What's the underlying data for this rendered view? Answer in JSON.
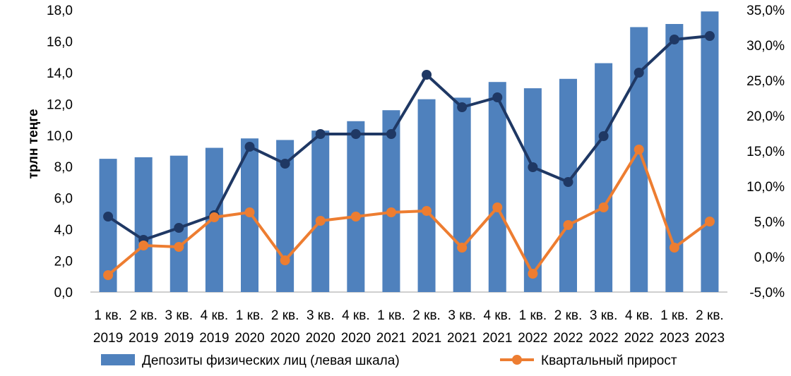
{
  "chart_data": {
    "type": "bar",
    "ylabel": "трлн теңге",
    "categories": [
      {
        "q": "1 кв.",
        "y": "2019"
      },
      {
        "q": "2 кв.",
        "y": "2019"
      },
      {
        "q": "3 кв.",
        "y": "2019"
      },
      {
        "q": "4 кв.",
        "y": "2019"
      },
      {
        "q": "1 кв.",
        "y": "2020"
      },
      {
        "q": "2 кв.",
        "y": "2020"
      },
      {
        "q": "3 кв.",
        "y": "2020"
      },
      {
        "q": "4 кв.",
        "y": "2020"
      },
      {
        "q": "1 кв.",
        "y": "2021"
      },
      {
        "q": "2 кв.",
        "y": "2021"
      },
      {
        "q": "3 кв.",
        "y": "2021"
      },
      {
        "q": "4 кв.",
        "y": "2021"
      },
      {
        "q": "1 кв.",
        "y": "2022"
      },
      {
        "q": "2 кв.",
        "y": "2022"
      },
      {
        "q": "3 кв.",
        "y": "2022"
      },
      {
        "q": "4 кв.",
        "y": "2022"
      },
      {
        "q": "1 кв.",
        "y": "2023"
      },
      {
        "q": "2 кв.",
        "y": "2023"
      }
    ],
    "left_axis": {
      "ylim": [
        0,
        18
      ],
      "ticks": [
        "0,0",
        "2,0",
        "4,0",
        "6,0",
        "8,0",
        "10,0",
        "12,0",
        "14,0",
        "16,0",
        "18,0"
      ]
    },
    "right_axis": {
      "ylim": [
        -5,
        35
      ],
      "ticks": [
        "-5,0%",
        "0,0%",
        "5,0%",
        "10,0%",
        "15,0%",
        "20,0%",
        "25,0%",
        "30,0%",
        "35,0%"
      ]
    },
    "series": [
      {
        "name": "Депозиты физических лиц (левая шкала)",
        "type": "bar",
        "axis": "left",
        "color": "#4f81bd",
        "values": [
          8.5,
          8.6,
          8.7,
          9.2,
          9.8,
          9.7,
          10.3,
          10.9,
          11.6,
          12.3,
          12.4,
          13.4,
          13.0,
          13.6,
          14.6,
          16.9,
          17.1,
          17.9
        ]
      },
      {
        "name": "Квартальный прирост",
        "type": "line",
        "axis": "right",
        "color": "#ed7d31",
        "values": [
          -2.6,
          1.6,
          1.4,
          5.6,
          6.3,
          -0.5,
          5.1,
          5.7,
          6.3,
          6.5,
          1.3,
          7.0,
          -2.4,
          4.5,
          7.0,
          15.2,
          1.3,
          5.0
        ]
      },
      {
        "name": "",
        "type": "line",
        "axis": "right",
        "color": "#1f3864",
        "values": [
          5.7,
          2.4,
          4.1,
          5.9,
          15.6,
          13.2,
          17.4,
          17.4,
          17.4,
          25.8,
          21.2,
          22.6,
          12.7,
          10.6,
          17.1,
          26.1,
          30.8,
          31.3
        ]
      }
    ],
    "legend": {
      "position": "bottom",
      "items": [
        "Депозиты физических лиц (левая шкала)",
        "Квартальный прирост"
      ]
    }
  }
}
